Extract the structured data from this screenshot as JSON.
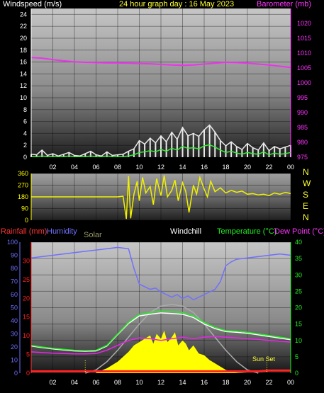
{
  "chart_data": [
    {
      "type": "line",
      "title": "24 hour graph day : 16 May 2023",
      "ylabel": "Windspeed (m/s)",
      "y2label": "Barometer (mb)",
      "ylim": [
        0,
        25
      ],
      "y2lim": [
        975,
        1025
      ],
      "yticks": [
        "0",
        "2",
        "4",
        "6",
        "8",
        "10",
        "12",
        "14",
        "16",
        "18",
        "20",
        "22",
        "24"
      ],
      "y2ticks": [
        "975",
        "980",
        "985",
        "990",
        "995",
        "1000",
        "1005",
        "1010",
        "1015",
        "1020"
      ],
      "xticks": [
        "02",
        "04",
        "06",
        "08",
        "10",
        "12",
        "14",
        "16",
        "18",
        "20",
        "22",
        "00"
      ],
      "xlim": [
        0,
        24
      ],
      "grid": true,
      "colors": {
        "gust": "#e8e8e8",
        "wind": "#33ee33",
        "barometer": "#ee33ee",
        "left_axis": "#ffffff",
        "right_axis": "#ff33ff"
      },
      "series": [
        {
          "id": "gust",
          "x": [
            0,
            0.5,
            1,
            1.5,
            2,
            2.5,
            3,
            3.5,
            4,
            4.5,
            5,
            5.5,
            6,
            6.5,
            7,
            7.5,
            8,
            8.5,
            9,
            9.5,
            10,
            10.5,
            11,
            11.5,
            12,
            12.5,
            13,
            13.5,
            14,
            14.5,
            15,
            15.5,
            16,
            16.5,
            17,
            17.5,
            18,
            18.5,
            19,
            19.5,
            20,
            20.5,
            21,
            21.5,
            22,
            22.5,
            23,
            23.5,
            24
          ],
          "values": [
            0.5,
            0.4,
            1.2,
            0.3,
            0.6,
            0.2,
            0.5,
            0.8,
            0.3,
            0.2,
            0.6,
            1.0,
            0.4,
            0.2,
            0.9,
            0.3,
            0.4,
            0.5,
            1.0,
            1.4,
            2.8,
            2.2,
            3.2,
            2.4,
            3.6,
            2.6,
            4.2,
            3.0,
            5.0,
            3.6,
            4.0,
            3.5,
            4.6,
            5.4,
            4.2,
            2.8,
            1.9,
            2.6,
            1.8,
            1.3,
            2.3,
            1.6,
            1.2,
            2.4,
            1.1,
            1.8,
            1.4,
            1.7,
            2.0
          ]
        },
        {
          "id": "wind",
          "x": [
            0,
            0.5,
            1,
            1.5,
            2,
            2.5,
            3,
            3.5,
            4,
            4.5,
            5,
            5.5,
            6,
            6.5,
            7,
            7.5,
            8,
            8.5,
            9,
            9.5,
            10,
            10.5,
            11,
            11.5,
            12,
            12.5,
            13,
            13.5,
            14,
            14.5,
            15,
            15.5,
            16,
            16.5,
            17,
            17.5,
            18,
            18.5,
            19,
            19.5,
            20,
            20.5,
            21,
            21.5,
            22,
            22.5,
            23,
            23.5,
            24
          ],
          "values": [
            0.1,
            0.1,
            0.2,
            0.1,
            0.1,
            0.1,
            0.1,
            0.2,
            0.1,
            0.1,
            0.1,
            0.2,
            0.1,
            0.1,
            0.2,
            0.1,
            0.1,
            0.1,
            0.2,
            0.4,
            0.8,
            0.9,
            1.1,
            0.9,
            1.3,
            1.0,
            1.5,
            1.2,
            1.8,
            1.5,
            1.6,
            1.4,
            1.9,
            2.1,
            1.7,
            1.2,
            0.8,
            1.0,
            0.7,
            0.5,
            0.8,
            0.6,
            0.5,
            0.9,
            0.4,
            0.7,
            0.5,
            0.6,
            0.8
          ]
        },
        {
          "id": "barometer",
          "axis": "right",
          "x": [
            0,
            1,
            2,
            3,
            4,
            5,
            6,
            7,
            8,
            9,
            10,
            11,
            12,
            13,
            14,
            15,
            16,
            17,
            18,
            19,
            20,
            21,
            22,
            23,
            24
          ],
          "values": [
            1008.5,
            1008.3,
            1007.8,
            1007.4,
            1007.1,
            1006.9,
            1006.8,
            1006.7,
            1006.7,
            1006.6,
            1006.5,
            1006.4,
            1006.2,
            1006.0,
            1005.9,
            1006.0,
            1006.3,
            1006.6,
            1006.9,
            1006.8,
            1006.6,
            1006.3,
            1006.0,
            1005.6,
            1005.2
          ]
        }
      ]
    },
    {
      "type": "line",
      "ylabel_right": [
        "N",
        "W",
        "S",
        "E",
        "N"
      ],
      "ylim": [
        0,
        360
      ],
      "yticks": [
        "0",
        "90",
        "180",
        "270",
        "360"
      ],
      "xticks": [
        "02",
        "04",
        "06",
        "08",
        "10",
        "12",
        "14",
        "16",
        "18",
        "20",
        "22",
        "00"
      ],
      "xlim": [
        0,
        24
      ],
      "grid": true,
      "colors": {
        "direction": "#f0f000",
        "left_axis": "#ffff00"
      },
      "series": [
        {
          "id": "wind_direction",
          "x": [
            0,
            1,
            2,
            3,
            4,
            5,
            6,
            7,
            8,
            8.5,
            8.8,
            9.0,
            9.2,
            9.5,
            9.8,
            10,
            10.3,
            10.6,
            11,
            11.3,
            11.6,
            12,
            12.3,
            12.6,
            13,
            13.3,
            13.6,
            14,
            14.3,
            14.6,
            15,
            15.3,
            15.6,
            16,
            16.3,
            16.6,
            17,
            17.5,
            18,
            18.5,
            19,
            19.5,
            20,
            20.5,
            21,
            21.5,
            22,
            22.5,
            23,
            23.5,
            24
          ],
          "values": [
            180,
            180,
            180,
            180,
            180,
            180,
            180,
            180,
            180,
            185,
            10,
            340,
            15,
            200,
            300,
            150,
            330,
            210,
            260,
            120,
            320,
            190,
            345,
            180,
            230,
            310,
            150,
            290,
            220,
            60,
            270,
            200,
            330,
            240,
            180,
            300,
            220,
            250,
            210,
            230,
            215,
            225,
            200,
            205,
            195,
            200,
            190,
            210,
            200,
            215,
            205
          ]
        }
      ]
    },
    {
      "type": "line",
      "legend": [
        "Rainfall (mm)",
        "Humidity",
        "Solar",
        "Windchill",
        "Temperature (°C)",
        "Dew Point (°C)"
      ],
      "annotations": [
        "Sun Set"
      ],
      "ylim_rain": [
        0,
        35
      ],
      "yticks_rain": [
        "0",
        "5",
        "10",
        "15",
        "20",
        "25",
        "30"
      ],
      "ylim_humidity": [
        0,
        100
      ],
      "yticks_humidity": [
        "0",
        "10",
        "20",
        "30",
        "40",
        "50",
        "60",
        "70",
        "80",
        "90",
        "100"
      ],
      "ylim_temp": [
        0,
        40
      ],
      "yticks_temp": [
        "0",
        "5",
        "10",
        "15",
        "20",
        "25",
        "30",
        "35",
        "40"
      ],
      "xticks": [
        "02",
        "04",
        "06",
        "08",
        "10",
        "12",
        "14",
        "16",
        "18",
        "20",
        "22",
        "00"
      ],
      "xlim": [
        0,
        24
      ],
      "grid": true,
      "colors": {
        "rain": "#ff2222",
        "humidity": "#7070ff",
        "solar_curve": "#aaaaaa",
        "solar_fill": "#ffff00",
        "windchill": "#ffffff",
        "temperature": "#22ee22",
        "dewpoint": "#ee22ee",
        "solar_label": "#999966"
      },
      "series": [
        {
          "id": "humidity",
          "name": "Humidity",
          "axis": "humidity",
          "x": [
            0,
            1,
            2,
            3,
            4,
            5,
            6,
            7,
            8,
            9,
            9.5,
            10,
            10.5,
            11,
            11.5,
            12,
            12.5,
            13,
            13.5,
            14,
            14.5,
            15,
            15.5,
            16,
            16.5,
            17,
            17.5,
            18,
            18.5,
            19,
            20,
            21,
            22,
            23,
            24
          ],
          "values": [
            88,
            89,
            90,
            91,
            92,
            93,
            94,
            95,
            96,
            95,
            80,
            68,
            66,
            64,
            65,
            62,
            60,
            58,
            60,
            57,
            59,
            56,
            58,
            60,
            62,
            64,
            70,
            82,
            85,
            87,
            88,
            89,
            90,
            91,
            90
          ]
        },
        {
          "id": "temperature",
          "name": "Temperature (°C)",
          "axis": "temp",
          "x": [
            0,
            1,
            2,
            3,
            4,
            5,
            6,
            7,
            8,
            9,
            10,
            11,
            12,
            13,
            14,
            15,
            16,
            17,
            18,
            19,
            20,
            21,
            22,
            23,
            24
          ],
          "values": [
            8.5,
            8.0,
            7.6,
            7.3,
            7.0,
            6.9,
            7.0,
            8.5,
            12.0,
            15.5,
            18.0,
            18.5,
            19.0,
            18.8,
            18.5,
            17.5,
            15.5,
            14.0,
            13.0,
            12.8,
            12.5,
            12.0,
            11.5,
            11.0,
            10.5
          ]
        },
        {
          "id": "dewpoint",
          "name": "Dew Point (°C)",
          "axis": "temp",
          "x": [
            0,
            1,
            2,
            3,
            4,
            5,
            6,
            7,
            8,
            9,
            10,
            11,
            12,
            13,
            14,
            15,
            16,
            17,
            18,
            19,
            20,
            21,
            22,
            23,
            24
          ],
          "values": [
            6.5,
            6.3,
            6.1,
            6.0,
            5.9,
            5.9,
            6.0,
            7.0,
            8.5,
            10.0,
            10.8,
            10.5,
            10.0,
            10.5,
            11.0,
            10.5,
            11.0,
            11.2,
            11.0,
            10.8,
            10.5,
            10.3,
            10.0,
            9.8,
            9.5
          ]
        },
        {
          "id": "windchill",
          "name": "Windchill",
          "axis": "temp",
          "x": [
            0,
            1,
            2,
            3,
            4,
            5,
            6,
            7,
            8,
            9,
            10,
            11,
            12,
            13,
            14,
            15,
            16,
            17,
            18,
            19,
            20,
            21,
            22,
            23,
            24
          ],
          "values": [
            8.3,
            7.8,
            7.4,
            7.1,
            6.8,
            6.7,
            6.8,
            8.3,
            11.8,
            15.2,
            17.5,
            18.0,
            18.4,
            18.2,
            18.0,
            17.0,
            15.0,
            13.6,
            12.7,
            12.5,
            12.2,
            11.7,
            11.2,
            10.7,
            10.2
          ]
        },
        {
          "id": "solar_max",
          "name": "Solar",
          "axis": "temp",
          "x": [
            5,
            6,
            7,
            8,
            9,
            10,
            11,
            12,
            13,
            14,
            15,
            16,
            17,
            18,
            19,
            20,
            21
          ],
          "values": [
            0,
            1.0,
            3.5,
            7.0,
            11.0,
            15.0,
            18.5,
            20.5,
            21.0,
            20.5,
            18.5,
            15.0,
            11.0,
            7.0,
            3.5,
            1.0,
            0
          ]
        },
        {
          "id": "solar_actual",
          "name": "Solar",
          "axis": "temp",
          "x": [
            6,
            7,
            8,
            8.5,
            9,
            9.5,
            10,
            10.5,
            11,
            11.3,
            11.6,
            12,
            12.3,
            12.6,
            13,
            13.3,
            13.6,
            14,
            14.3,
            14.6,
            15,
            15.5,
            16,
            16.5,
            17,
            17.5,
            18,
            18.5,
            19,
            20
          ],
          "values": [
            0.2,
            1.5,
            3.5,
            5.0,
            6.5,
            8.5,
            9.5,
            10.5,
            11.5,
            9.0,
            12.0,
            10.5,
            13.0,
            9.5,
            11.0,
            12.5,
            8.5,
            10.0,
            9.0,
            7.0,
            8.5,
            6.0,
            5.5,
            4.0,
            3.0,
            2.0,
            1.0,
            0.5,
            0.2,
            0
          ]
        },
        {
          "id": "rainfall",
          "name": "Rainfall (mm)",
          "axis": "rain",
          "x": [
            0,
            4,
            5,
            8,
            12,
            16,
            20,
            21,
            22,
            24
          ],
          "values": [
            0.5,
            0.5,
            0.5,
            0.5,
            0.5,
            0.5,
            0.5,
            0.5,
            0.7,
            0.7
          ]
        }
      ]
    }
  ]
}
